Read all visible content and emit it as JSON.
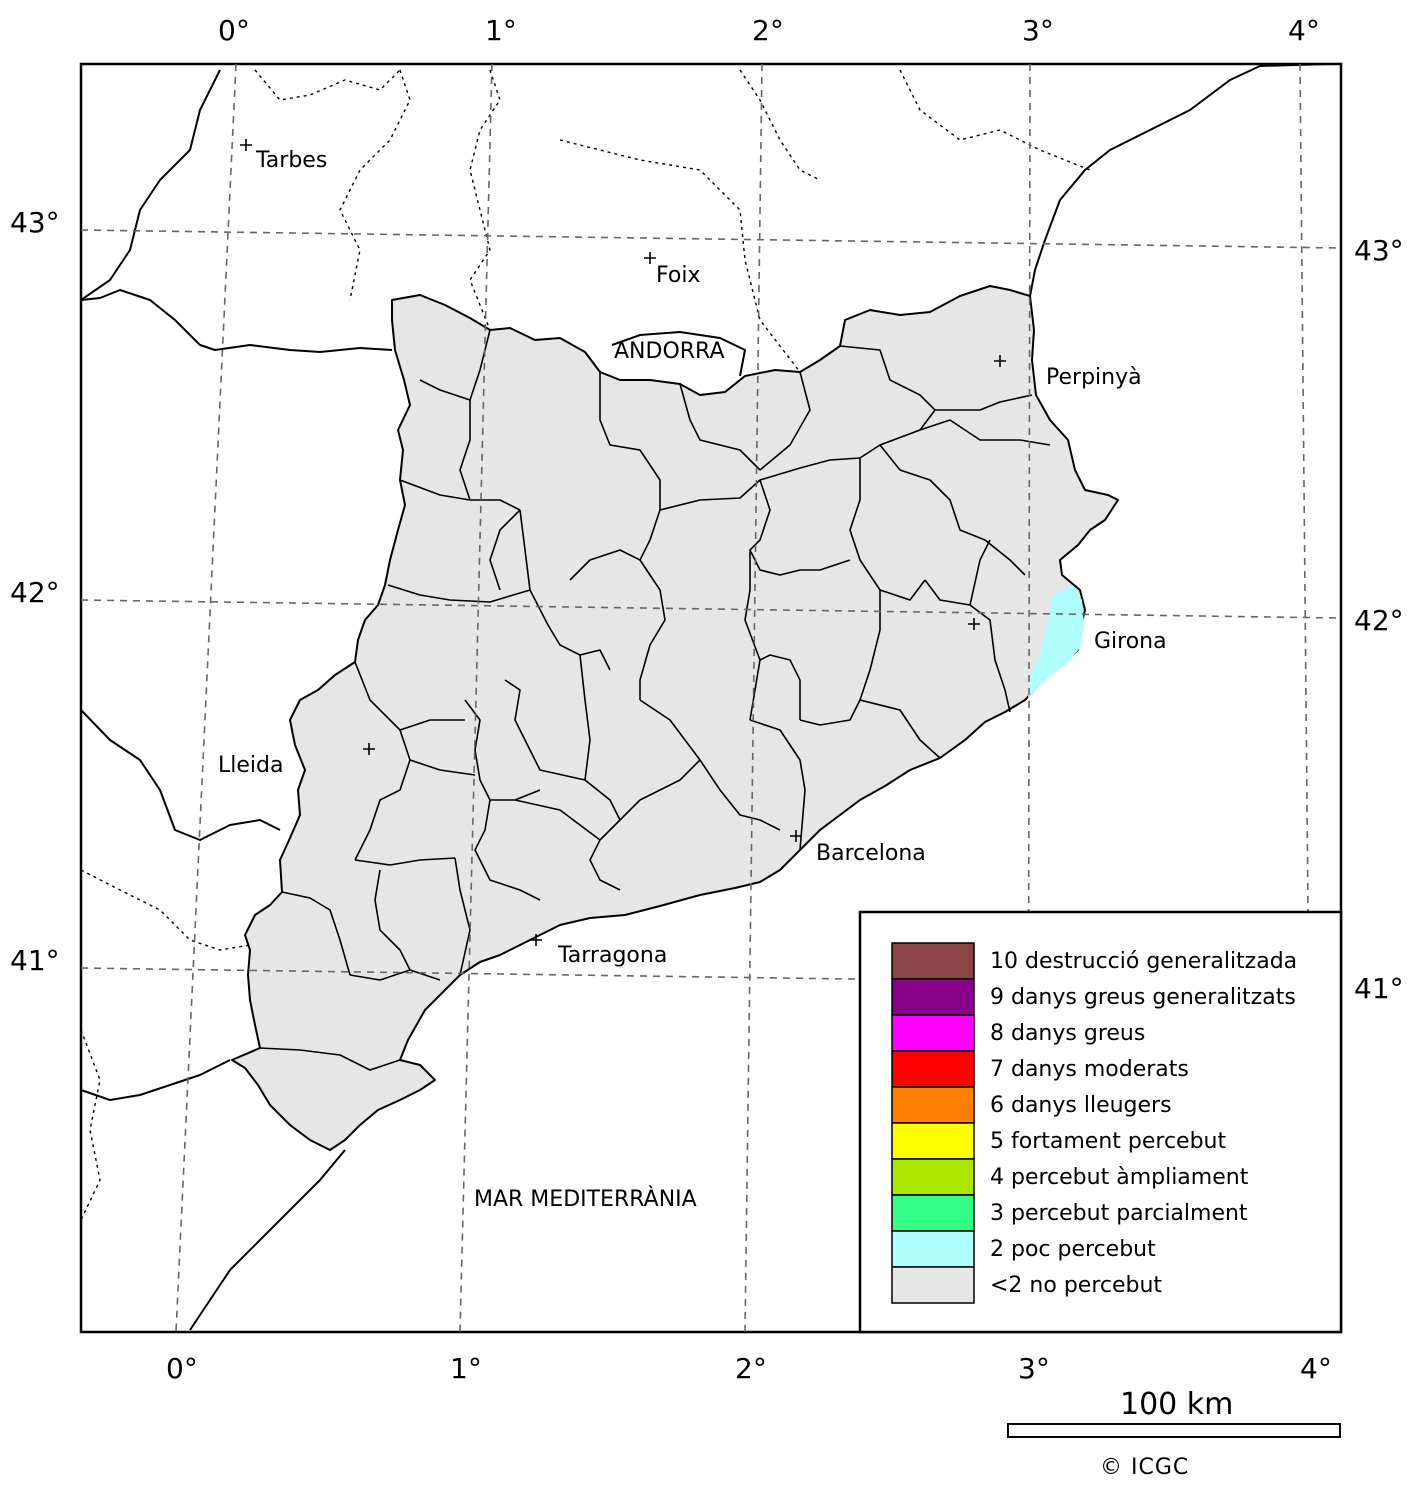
{
  "map": {
    "top_longitude_labels": [
      "0°",
      "1°",
      "2°",
      "3°",
      "4°"
    ],
    "bottom_longitude_labels": [
      "0°",
      "1°",
      "2°",
      "3°",
      "4°"
    ],
    "left_latitude_labels": [
      "43°",
      "42°",
      "41°"
    ],
    "right_latitude_labels": [
      "43°",
      "42°",
      "41°"
    ],
    "places": [
      {
        "name": "Tarbes",
        "marker": true
      },
      {
        "name": "Foix",
        "marker": true
      },
      {
        "name": "ANDORRA",
        "marker": false
      },
      {
        "name": "Perpinyà",
        "marker": true
      },
      {
        "name": "Girona",
        "marker": true
      },
      {
        "name": "Lleida",
        "marker": true
      },
      {
        "name": "Barcelona",
        "marker": true
      },
      {
        "name": "Tarragona",
        "marker": true
      }
    ],
    "sea_label": "MAR MEDITERRÀNIA",
    "land_fill": "#e6e6e6",
    "affected_fill": "#b0ffff"
  },
  "legend": {
    "items": [
      {
        "label": "10 destrucció generalitzada",
        "color": "#8b4444"
      },
      {
        "label": "9 danys greus generalitzats",
        "color": "#880088"
      },
      {
        "label": "8 danys greus",
        "color": "#ff00ff"
      },
      {
        "label": "7 danys moderats",
        "color": "#ff0000"
      },
      {
        "label": "6 danys lleugers",
        "color": "#ff8000"
      },
      {
        "label": "5 fortament percebut",
        "color": "#ffff00"
      },
      {
        "label": "4 percebut àmpliament",
        "color": "#aae600"
      },
      {
        "label": "3 percebut parcialment",
        "color": "#33ff88"
      },
      {
        "label": "2 poc percebut",
        "color": "#b0ffff"
      },
      {
        "label": "<2 no percebut",
        "color": "#e6e6e6"
      }
    ]
  },
  "scale": {
    "label": "100 km"
  },
  "credit": "© ICGC"
}
